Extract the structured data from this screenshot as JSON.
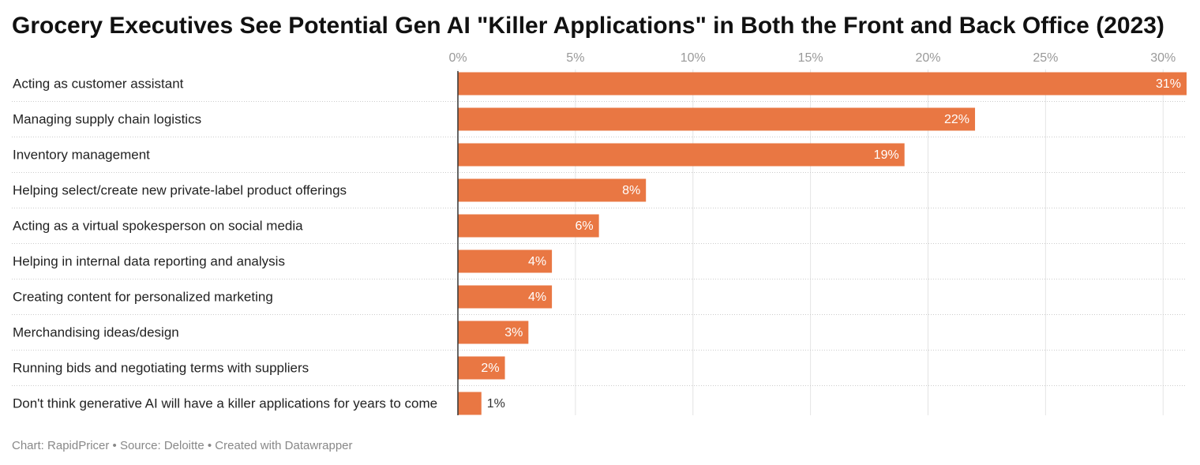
{
  "chart_data": {
    "type": "bar",
    "orientation": "horizontal",
    "title": "Grocery Executives See Potential Gen AI \"Killer Applications\" in Both the Front and Back Office (2023)",
    "categories": [
      "Acting as customer assistant",
      "Managing supply chain logistics",
      "Inventory management",
      "Helping select/create new private-label product offerings",
      "Acting as a virtual spokesperson on social media",
      "Helping in internal data reporting and analysis",
      "Creating content for personalized marketing",
      "Merchandising ideas/design",
      "Running bids and negotiating terms with suppliers",
      "Don't think generative AI will have a killer applications for years to come"
    ],
    "values": [
      31,
      22,
      19,
      8,
      6,
      4,
      4,
      3,
      2,
      1
    ],
    "value_labels": [
      "31%",
      "22%",
      "19%",
      "8%",
      "6%",
      "4%",
      "4%",
      "3%",
      "2%",
      "1%"
    ],
    "color": "#e97743",
    "xlim": [
      0,
      31
    ],
    "xticks": [
      {
        "value": 0,
        "label": "0%"
      },
      {
        "value": 5,
        "label": "5%"
      },
      {
        "value": 10,
        "label": "10%"
      },
      {
        "value": 15,
        "label": "15%"
      },
      {
        "value": 20,
        "label": "20%"
      },
      {
        "value": 25,
        "label": "25%"
      },
      {
        "value": 30,
        "label": "30%"
      }
    ],
    "grid": true,
    "footer": "Chart: RapidPricer • Source: Deloitte • Created with Datawrapper"
  }
}
